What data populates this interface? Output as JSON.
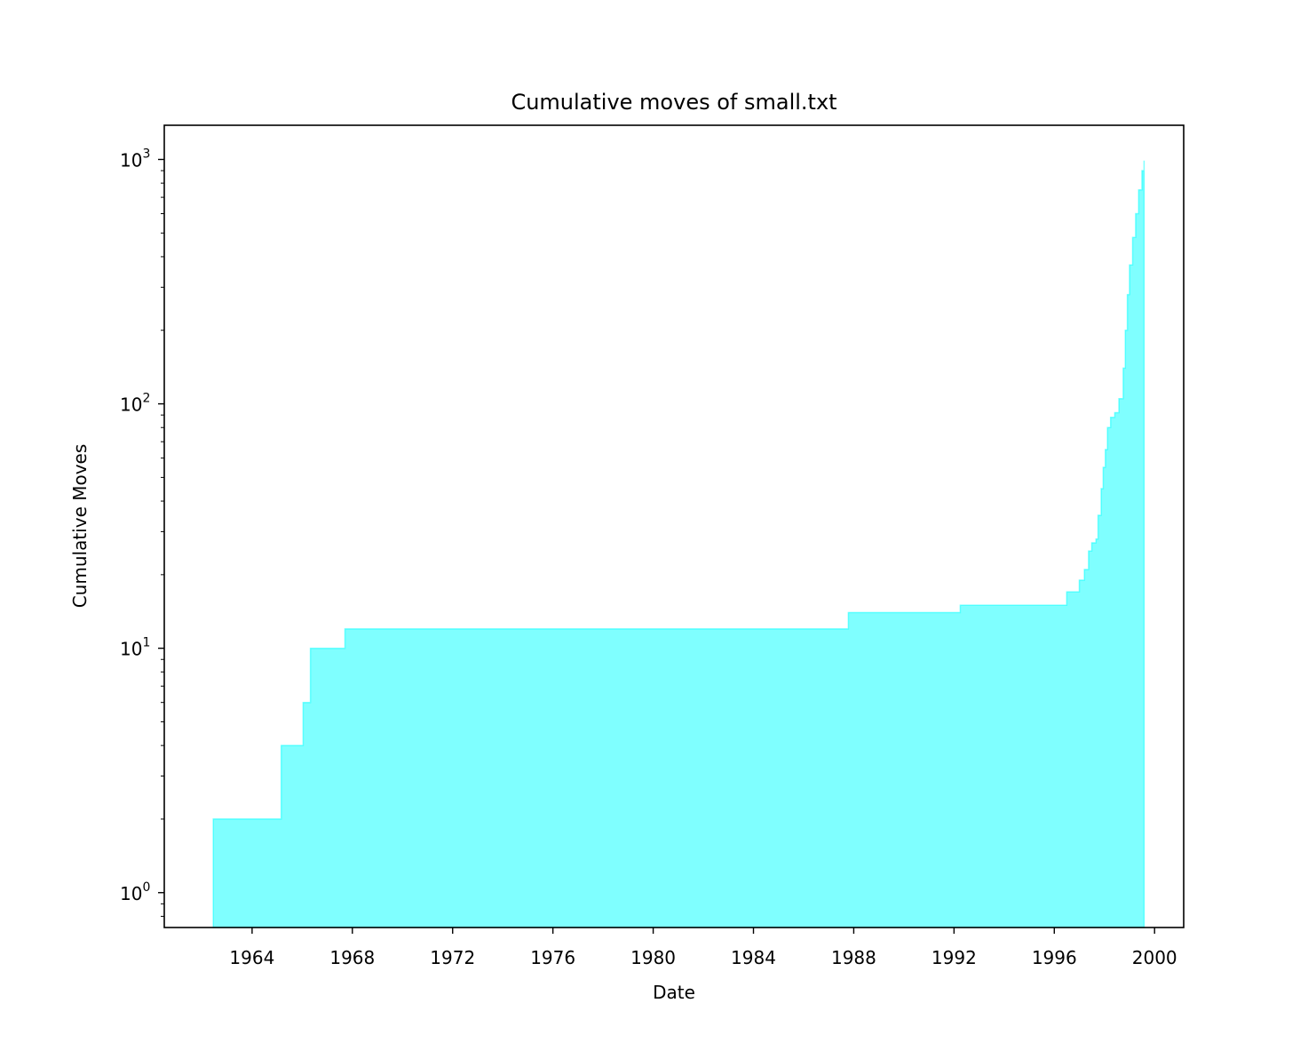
{
  "chart_data": {
    "type": "area",
    "title": "Cumulative moves of small.txt",
    "xlabel": "Date",
    "ylabel": "Cumulative Moves",
    "yscale": "log",
    "grid": false,
    "fill_color": "#00ffff",
    "fill_alpha": 0.5,
    "xlim": [
      "1960-07-01",
      "2001-03-01"
    ],
    "ylim": [
      0.72,
      1380
    ],
    "x_ticks": [
      "1964",
      "1968",
      "1972",
      "1976",
      "1980",
      "1984",
      "1988",
      "1992",
      "1996",
      "2000"
    ],
    "y_ticks": [
      {
        "value": 1,
        "base": "10",
        "exp": "0"
      },
      {
        "value": 10,
        "base": "10",
        "exp": "1"
      },
      {
        "value": 100,
        "base": "10",
        "exp": "2"
      },
      {
        "value": 1000,
        "base": "10",
        "exp": "3"
      }
    ],
    "points": [
      {
        "x": "1962-06-15",
        "y": 2
      },
      {
        "x": "1965-03-01",
        "y": 4
      },
      {
        "x": "1966-01-15",
        "y": 6
      },
      {
        "x": "1966-05-01",
        "y": 10
      },
      {
        "x": "1967-09-15",
        "y": 12
      },
      {
        "x": "1987-10-15",
        "y": 14
      },
      {
        "x": "1992-04-01",
        "y": 15
      },
      {
        "x": "1996-07-01",
        "y": 17
      },
      {
        "x": "1997-01-01",
        "y": 19
      },
      {
        "x": "1997-03-15",
        "y": 21
      },
      {
        "x": "1997-05-15",
        "y": 25
      },
      {
        "x": "1997-07-01",
        "y": 27
      },
      {
        "x": "1997-09-01",
        "y": 28
      },
      {
        "x": "1997-10-01",
        "y": 35
      },
      {
        "x": "1997-11-15",
        "y": 45
      },
      {
        "x": "1997-12-15",
        "y": 55
      },
      {
        "x": "1998-01-15",
        "y": 65
      },
      {
        "x": "1998-02-15",
        "y": 80
      },
      {
        "x": "1998-04-01",
        "y": 88
      },
      {
        "x": "1998-06-01",
        "y": 92
      },
      {
        "x": "1998-08-01",
        "y": 105
      },
      {
        "x": "1998-10-01",
        "y": 140
      },
      {
        "x": "1998-11-01",
        "y": 200
      },
      {
        "x": "1998-12-01",
        "y": 280
      },
      {
        "x": "1999-01-01",
        "y": 370
      },
      {
        "x": "1999-02-15",
        "y": 480
      },
      {
        "x": "1999-04-01",
        "y": 600
      },
      {
        "x": "1999-05-15",
        "y": 750
      },
      {
        "x": "1999-07-01",
        "y": 900
      },
      {
        "x": "1999-08-01",
        "y": 990
      }
    ]
  }
}
